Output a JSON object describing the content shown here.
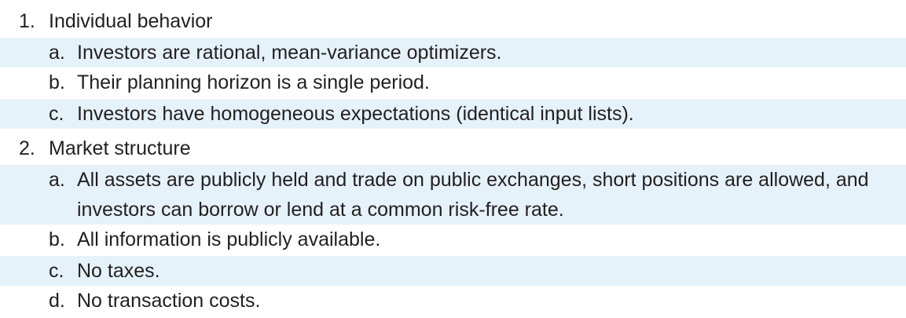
{
  "sections": [
    {
      "number": "1.",
      "title": "Individual behavior",
      "items": [
        {
          "letter": "a.",
          "text": "Investors are rational, mean-variance optimizers."
        },
        {
          "letter": "b.",
          "text": "Their planning horizon is a single period."
        },
        {
          "letter": "c.",
          "text": "Investors have homogeneous expectations (identical input lists)."
        }
      ]
    },
    {
      "number": "2.",
      "title": "Market structure",
      "items": [
        {
          "letter": "a.",
          "text": "All assets are publicly held and trade on public exchanges, short positions are allowed, and investors can borrow or lend at a common risk-free rate."
        },
        {
          "letter": "b.",
          "text": "All information is publicly available."
        },
        {
          "letter": "c.",
          "text": "No taxes."
        },
        {
          "letter": "d.",
          "text": "No transaction costs."
        }
      ]
    }
  ],
  "colors": {
    "shade": "#e5f2f9",
    "text": "#231f20"
  }
}
